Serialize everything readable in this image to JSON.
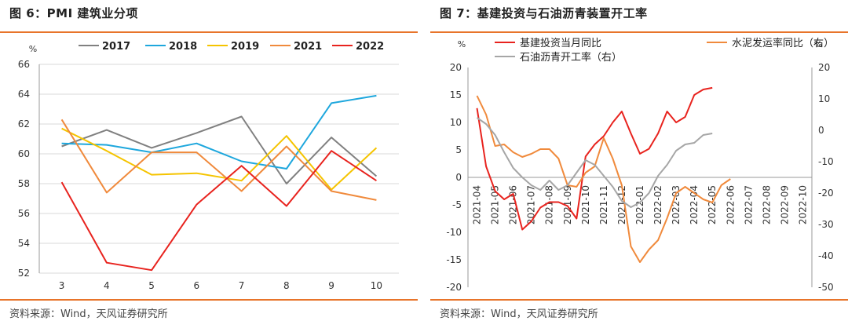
{
  "left": {
    "title": "图 6：PMI 建筑业分项",
    "source": "资料来源：Wind，天风证券研究所",
    "chart_data": {
      "type": "line",
      "unit_label": "%",
      "categories": [
        "3",
        "4",
        "5",
        "6",
        "7",
        "8",
        "9",
        "10"
      ],
      "ylim": [
        52,
        66
      ],
      "yticks": [
        "52",
        "54",
        "56",
        "58",
        "60",
        "62",
        "64",
        "66"
      ],
      "grid": true,
      "legend": "top",
      "series": [
        {
          "name": "2017",
          "color": "#808080",
          "values": [
            60.5,
            61.6,
            60.4,
            61.4,
            62.5,
            58.0,
            61.1,
            58.5
          ]
        },
        {
          "name": "2018",
          "color": "#1ea7dd",
          "values": [
            60.7,
            60.6,
            60.1,
            60.7,
            59.5,
            59.0,
            63.4,
            63.9
          ]
        },
        {
          "name": "2019",
          "color": "#f5c400",
          "values": [
            61.7,
            60.2,
            58.6,
            58.7,
            58.2,
            61.2,
            57.6,
            60.4
          ]
        },
        {
          "name": "2021",
          "color": "#f08a3c",
          "values": [
            62.3,
            57.4,
            60.1,
            60.1,
            57.5,
            60.5,
            57.5,
            56.9
          ]
        },
        {
          "name": "2022",
          "color": "#e8231e",
          "values": [
            58.1,
            52.7,
            52.2,
            56.6,
            59.2,
            56.5,
            60.2,
            58.2
          ]
        }
      ]
    }
  },
  "right": {
    "title": "图 7：基建投资与石油沥青装置开工率",
    "source": "资料来源：Wind，天风证券研究所",
    "chart_data": {
      "type": "line",
      "left_unit": "%",
      "right_unit": "%",
      "categories": [
        "2021-04",
        "2021-05",
        "2021-06",
        "2021-07",
        "2021-08",
        "2021-09",
        "2021-10",
        "2021-11",
        "2021-12",
        "2022-01",
        "2022-02",
        "2022-03",
        "2022-04",
        "2022-05",
        "2022-06",
        "2022-07",
        "2022-08",
        "2022-09",
        "2022-10"
      ],
      "ylim_left": [
        -20,
        20
      ],
      "yticks_left": [
        "-20",
        "-15",
        "-10",
        "-5",
        "0",
        "5",
        "10",
        "15",
        "20"
      ],
      "ylim_right": [
        -50,
        20
      ],
      "yticks_right": [
        "-50",
        "-40",
        "-30",
        "-20",
        "-10",
        "0",
        "10",
        "20"
      ],
      "legend": "top",
      "series": [
        {
          "name": "基建投资当月同比",
          "axis": "left",
          "color": "#e8231e",
          "x": [
            0,
            0.5,
            1,
            1.5,
            2,
            2.5,
            3,
            3.5,
            4,
            4.5,
            5,
            5.5,
            6,
            6.5,
            7,
            7.5,
            8,
            8.5,
            9,
            9.5,
            10,
            10.5,
            11,
            11.5,
            12,
            12.5,
            13,
            13.5,
            14,
            14.5,
            15,
            15.5,
            16,
            16.5,
            17,
            17.5,
            18
          ],
          "values": [
            12.6,
            2.0,
            -2.5,
            -4.0,
            -3.0,
            -9.5,
            -8.0,
            -5.5,
            -4.5,
            -4.5,
            -5.2,
            -7.5,
            3.8,
            6.0,
            7.5,
            10.0,
            12.0,
            8.0,
            4.3,
            5.2,
            8.0,
            12.0,
            10.0,
            11.0,
            15.0,
            16.0,
            16.3,
            null,
            null,
            null,
            null,
            null,
            null,
            null,
            null,
            null,
            null
          ]
        },
        {
          "name": "水泥发运率同比（右）",
          "axis": "right",
          "color": "#f08a3c",
          "x": [
            0,
            0.5,
            1,
            1.5,
            2,
            2.5,
            3,
            3.5,
            4,
            4.5,
            5,
            5.5,
            6,
            6.5,
            7,
            7.5,
            8,
            8.5,
            9,
            9.5,
            10,
            10.5,
            11,
            11.5,
            12,
            12.5,
            13,
            13.5,
            14,
            14.5,
            15,
            15.5,
            16,
            16.5,
            17,
            17.5,
            18
          ],
          "values": [
            11.0,
            5.0,
            -5.0,
            -4.5,
            -7.0,
            -8.5,
            -7.5,
            -6.0,
            -6.0,
            -9.0,
            -17.5,
            -18.0,
            -13.5,
            -11.5,
            -2.5,
            -9.0,
            -17.5,
            -37.0,
            -42.0,
            -38.0,
            -35.0,
            -28.0,
            -20.0,
            -18.0,
            -20.0,
            -22.0,
            -23.0,
            -17.5,
            -15.5,
            null,
            null,
            null,
            null,
            null,
            null,
            null,
            null
          ]
        },
        {
          "name": "石油沥青开工率（右）",
          "axis": "right",
          "color": "#a6a6a6",
          "x": [
            0,
            0.5,
            1,
            1.5,
            2,
            2.5,
            3,
            3.5,
            4,
            4.5,
            5,
            5.5,
            6,
            6.5,
            7,
            7.5,
            8,
            8.5,
            9,
            9.5,
            10,
            10.5,
            11,
            11.5,
            12,
            12.5,
            13,
            13.5,
            14,
            14.5,
            15,
            15.5,
            16,
            16.5,
            17,
            17.5,
            18
          ],
          "values": [
            4.0,
            2.0,
            -1.5,
            -7.0,
            -12.0,
            -15.0,
            -17.5,
            -19.0,
            -16.0,
            -19.0,
            -17.5,
            -13.5,
            -9.5,
            -11.0,
            -14.5,
            -18.0,
            -22.5,
            -24.5,
            -23.0,
            -20.0,
            -14.5,
            -11.0,
            -6.5,
            -4.5,
            -4.0,
            -1.5,
            -1.0,
            null,
            null,
            null,
            null,
            null,
            null,
            null,
            null,
            null,
            null
          ]
        }
      ]
    }
  }
}
